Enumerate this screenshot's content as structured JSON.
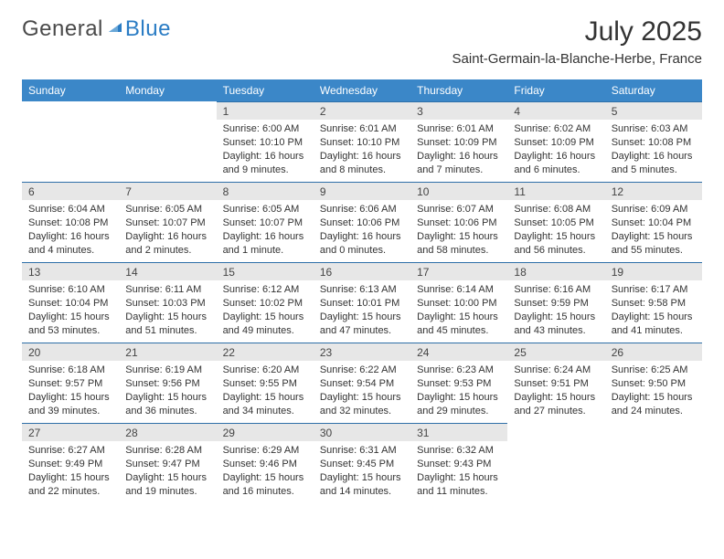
{
  "logo": {
    "text1": "General",
    "text2": "Blue"
  },
  "title": "July 2025",
  "subtitle": "Saint-Germain-la-Blanche-Herbe, France",
  "day_headers": [
    "Sunday",
    "Monday",
    "Tuesday",
    "Wednesday",
    "Thursday",
    "Friday",
    "Saturday"
  ],
  "colors": {
    "header_bg": "#3b87c8",
    "header_text": "#ffffff",
    "daynum_bg": "#e7e7e7",
    "row_border": "#2e6fa8",
    "logo_blue": "#2a7cc4",
    "body_text": "#333333",
    "page_bg": "#ffffff"
  },
  "weeks": [
    [
      {
        "empty": true
      },
      {
        "empty": true
      },
      {
        "n": "1",
        "sunrise": "6:00 AM",
        "sunset": "10:10 PM",
        "daylight": "16 hours and 9 minutes."
      },
      {
        "n": "2",
        "sunrise": "6:01 AM",
        "sunset": "10:10 PM",
        "daylight": "16 hours and 8 minutes."
      },
      {
        "n": "3",
        "sunrise": "6:01 AM",
        "sunset": "10:09 PM",
        "daylight": "16 hours and 7 minutes."
      },
      {
        "n": "4",
        "sunrise": "6:02 AM",
        "sunset": "10:09 PM",
        "daylight": "16 hours and 6 minutes."
      },
      {
        "n": "5",
        "sunrise": "6:03 AM",
        "sunset": "10:08 PM",
        "daylight": "16 hours and 5 minutes."
      }
    ],
    [
      {
        "n": "6",
        "sunrise": "6:04 AM",
        "sunset": "10:08 PM",
        "daylight": "16 hours and 4 minutes."
      },
      {
        "n": "7",
        "sunrise": "6:05 AM",
        "sunset": "10:07 PM",
        "daylight": "16 hours and 2 minutes."
      },
      {
        "n": "8",
        "sunrise": "6:05 AM",
        "sunset": "10:07 PM",
        "daylight": "16 hours and 1 minute."
      },
      {
        "n": "9",
        "sunrise": "6:06 AM",
        "sunset": "10:06 PM",
        "daylight": "16 hours and 0 minutes."
      },
      {
        "n": "10",
        "sunrise": "6:07 AM",
        "sunset": "10:06 PM",
        "daylight": "15 hours and 58 minutes."
      },
      {
        "n": "11",
        "sunrise": "6:08 AM",
        "sunset": "10:05 PM",
        "daylight": "15 hours and 56 minutes."
      },
      {
        "n": "12",
        "sunrise": "6:09 AM",
        "sunset": "10:04 PM",
        "daylight": "15 hours and 55 minutes."
      }
    ],
    [
      {
        "n": "13",
        "sunrise": "6:10 AM",
        "sunset": "10:04 PM",
        "daylight": "15 hours and 53 minutes."
      },
      {
        "n": "14",
        "sunrise": "6:11 AM",
        "sunset": "10:03 PM",
        "daylight": "15 hours and 51 minutes."
      },
      {
        "n": "15",
        "sunrise": "6:12 AM",
        "sunset": "10:02 PM",
        "daylight": "15 hours and 49 minutes."
      },
      {
        "n": "16",
        "sunrise": "6:13 AM",
        "sunset": "10:01 PM",
        "daylight": "15 hours and 47 minutes."
      },
      {
        "n": "17",
        "sunrise": "6:14 AM",
        "sunset": "10:00 PM",
        "daylight": "15 hours and 45 minutes."
      },
      {
        "n": "18",
        "sunrise": "6:16 AM",
        "sunset": "9:59 PM",
        "daylight": "15 hours and 43 minutes."
      },
      {
        "n": "19",
        "sunrise": "6:17 AM",
        "sunset": "9:58 PM",
        "daylight": "15 hours and 41 minutes."
      }
    ],
    [
      {
        "n": "20",
        "sunrise": "6:18 AM",
        "sunset": "9:57 PM",
        "daylight": "15 hours and 39 minutes."
      },
      {
        "n": "21",
        "sunrise": "6:19 AM",
        "sunset": "9:56 PM",
        "daylight": "15 hours and 36 minutes."
      },
      {
        "n": "22",
        "sunrise": "6:20 AM",
        "sunset": "9:55 PM",
        "daylight": "15 hours and 34 minutes."
      },
      {
        "n": "23",
        "sunrise": "6:22 AM",
        "sunset": "9:54 PM",
        "daylight": "15 hours and 32 minutes."
      },
      {
        "n": "24",
        "sunrise": "6:23 AM",
        "sunset": "9:53 PM",
        "daylight": "15 hours and 29 minutes."
      },
      {
        "n": "25",
        "sunrise": "6:24 AM",
        "sunset": "9:51 PM",
        "daylight": "15 hours and 27 minutes."
      },
      {
        "n": "26",
        "sunrise": "6:25 AM",
        "sunset": "9:50 PM",
        "daylight": "15 hours and 24 minutes."
      }
    ],
    [
      {
        "n": "27",
        "sunrise": "6:27 AM",
        "sunset": "9:49 PM",
        "daylight": "15 hours and 22 minutes."
      },
      {
        "n": "28",
        "sunrise": "6:28 AM",
        "sunset": "9:47 PM",
        "daylight": "15 hours and 19 minutes."
      },
      {
        "n": "29",
        "sunrise": "6:29 AM",
        "sunset": "9:46 PM",
        "daylight": "15 hours and 16 minutes."
      },
      {
        "n": "30",
        "sunrise": "6:31 AM",
        "sunset": "9:45 PM",
        "daylight": "15 hours and 14 minutes."
      },
      {
        "n": "31",
        "sunrise": "6:32 AM",
        "sunset": "9:43 PM",
        "daylight": "15 hours and 11 minutes."
      },
      {
        "empty": true
      },
      {
        "empty": true
      }
    ]
  ],
  "labels": {
    "sunrise_prefix": "Sunrise: ",
    "sunset_prefix": "Sunset: ",
    "daylight_prefix": "Daylight: "
  }
}
